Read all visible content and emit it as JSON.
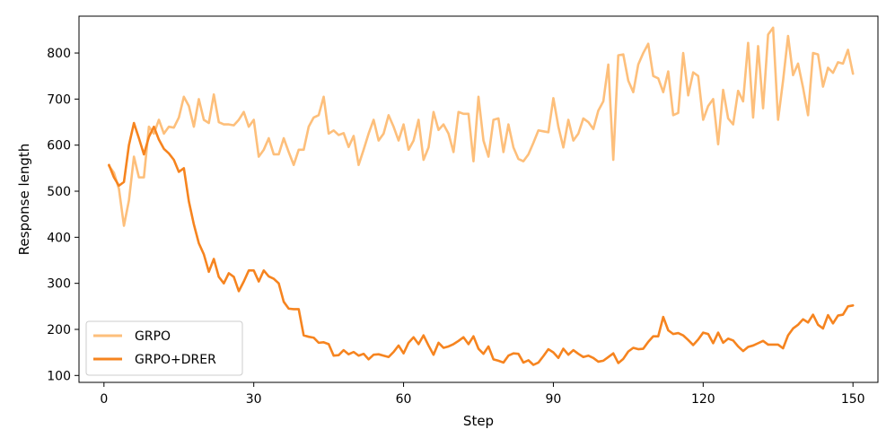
{
  "chart_data": {
    "type": "line",
    "title": "",
    "xlabel": "Step",
    "ylabel": "Response length",
    "xlim": [
      -5,
      155
    ],
    "ylim": [
      85,
      880
    ],
    "xticks": [
      0,
      30,
      60,
      90,
      120,
      150
    ],
    "xtick_labels": [
      "0",
      "30",
      "60",
      "90",
      "120",
      "150"
    ],
    "yticks": [
      100,
      200,
      300,
      400,
      500,
      600,
      700,
      800
    ],
    "ytick_labels": [
      "100",
      "200",
      "300",
      "400",
      "500",
      "600",
      "700",
      "800"
    ],
    "grid": false,
    "legend_position": "lower-left",
    "x": [
      1,
      2,
      3,
      4,
      5,
      6,
      7,
      8,
      9,
      10,
      11,
      12,
      13,
      14,
      15,
      16,
      17,
      18,
      19,
      20,
      21,
      22,
      23,
      24,
      25,
      26,
      27,
      28,
      29,
      30,
      31,
      32,
      33,
      34,
      35,
      36,
      37,
      38,
      39,
      40,
      41,
      42,
      43,
      44,
      45,
      46,
      47,
      48,
      49,
      50,
      51,
      52,
      53,
      54,
      55,
      56,
      57,
      58,
      59,
      60,
      61,
      62,
      63,
      64,
      65,
      66,
      67,
      68,
      69,
      70,
      71,
      72,
      73,
      74,
      75,
      76,
      77,
      78,
      79,
      80,
      81,
      82,
      83,
      84,
      85,
      86,
      87,
      88,
      89,
      90,
      91,
      92,
      93,
      94,
      95,
      96,
      97,
      98,
      99,
      100,
      101,
      102,
      103,
      104,
      105,
      106,
      107,
      108,
      109,
      110,
      111,
      112,
      113,
      114,
      115,
      116,
      117,
      118,
      119,
      120,
      121,
      122,
      123,
      124,
      125,
      126,
      127,
      128,
      129,
      130,
      131,
      132,
      133,
      134,
      135,
      136,
      137,
      138,
      139,
      140,
      141,
      142,
      143,
      144,
      145,
      146,
      147,
      148,
      149,
      150
    ],
    "series": [
      {
        "name": "GRPO",
        "color": "#fdbf7b",
        "values": [
          555,
          540,
          505,
          425,
          480,
          575,
          530,
          530,
          640,
          625,
          655,
          625,
          640,
          638,
          660,
          705,
          685,
          640,
          700,
          655,
          648,
          710,
          650,
          645,
          645,
          643,
          655,
          672,
          640,
          655,
          575,
          590,
          615,
          580,
          580,
          615,
          585,
          557,
          590,
          590,
          640,
          660,
          665,
          705,
          625,
          632,
          622,
          626,
          596,
          620,
          557,
          590,
          625,
          655,
          610,
          625,
          665,
          640,
          610,
          645,
          590,
          610,
          655,
          568,
          595,
          672,
          633,
          645,
          625,
          585,
          672,
          668,
          668,
          565,
          705,
          610,
          575,
          655,
          658,
          585,
          645,
          595,
          570,
          565,
          580,
          605,
          632,
          630,
          628,
          702,
          640,
          595,
          655,
          610,
          625,
          658,
          650,
          635,
          675,
          695,
          775,
          568,
          795,
          797,
          740,
          715,
          775,
          800,
          820,
          750,
          745,
          715,
          760,
          665,
          670,
          800,
          708,
          758,
          750,
          655,
          685,
          700,
          602,
          720,
          658,
          645,
          718,
          695,
          822,
          660,
          815,
          680,
          840,
          855,
          655,
          740,
          837,
          752,
          777,
          725,
          665,
          800,
          797,
          727,
          768,
          757,
          780,
          777,
          807,
          755
        ]
      },
      {
        "name": "GRPO+DRER",
        "color": "#f6841f",
        "values": [
          557,
          530,
          512,
          520,
          600,
          648,
          615,
          580,
          618,
          640,
          612,
          592,
          582,
          568,
          542,
          550,
          478,
          428,
          387,
          363,
          325,
          353,
          314,
          300,
          322,
          314,
          283,
          304,
          328,
          328,
          304,
          328,
          315,
          310,
          300,
          260,
          245,
          244,
          244,
          187,
          184,
          182,
          171,
          172,
          168,
          143,
          144,
          155,
          146,
          151,
          143,
          147,
          135,
          145,
          146,
          143,
          140,
          151,
          165,
          148,
          171,
          183,
          168,
          187,
          165,
          145,
          171,
          160,
          163,
          168,
          175,
          183,
          168,
          185,
          158,
          147,
          163,
          135,
          132,
          128,
          143,
          148,
          147,
          128,
          133,
          123,
          128,
          142,
          157,
          150,
          138,
          158,
          145,
          155,
          147,
          140,
          143,
          138,
          130,
          132,
          140,
          148,
          127,
          136,
          152,
          160,
          157,
          158,
          173,
          185,
          185,
          227,
          198,
          190,
          192,
          187,
          177,
          166,
          178,
          193,
          190,
          170,
          193,
          171,
          180,
          176,
          163,
          153,
          162,
          165,
          170,
          175,
          167,
          167,
          167,
          159,
          187,
          202,
          210,
          222,
          215,
          232,
          210,
          202,
          231,
          213,
          230,
          232,
          250,
          252
        ]
      }
    ]
  }
}
